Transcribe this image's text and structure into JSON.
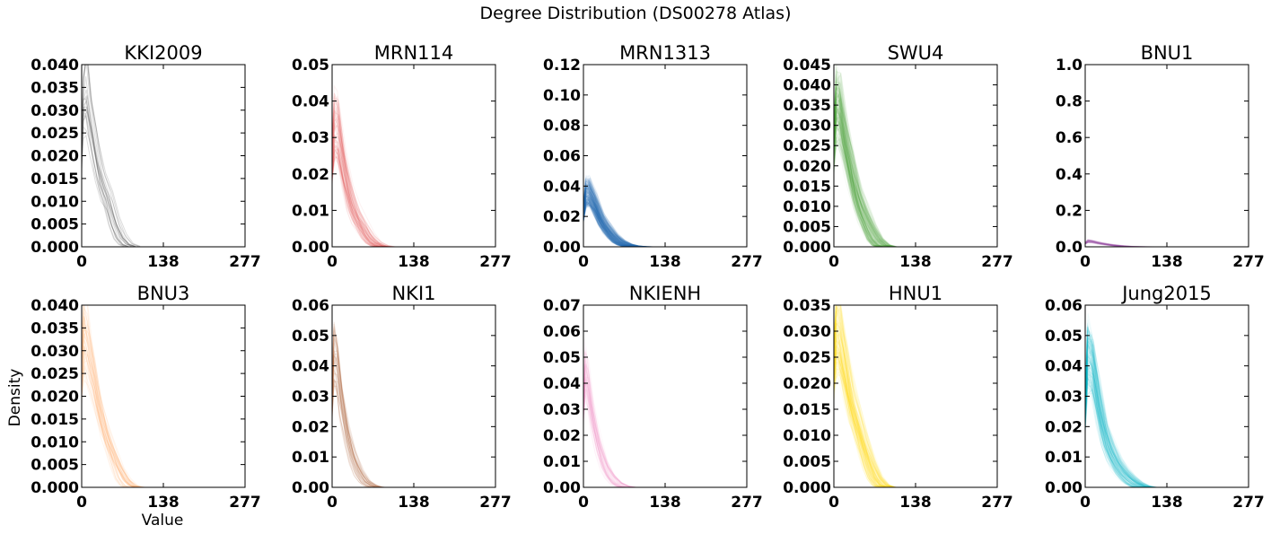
{
  "figure": {
    "title": "Degree Distribution (DS00278 Atlas)",
    "ylabel": "Density",
    "xlabel": "Value"
  },
  "chart_data": [
    {
      "type": "line",
      "title": "KKI2009",
      "color": "#555555",
      "x_ticks": [
        "0",
        "138",
        "277"
      ],
      "xlim": [
        0,
        277
      ],
      "y_ticks": [
        "0.000",
        "0.005",
        "0.010",
        "0.015",
        "0.020",
        "0.025",
        "0.030",
        "0.035",
        "0.040"
      ],
      "ylim": [
        0,
        0.04
      ],
      "curve_count": 20,
      "series": [
        {
          "x": [
            0,
            3,
            8,
            15,
            25,
            35,
            45,
            55,
            65,
            75,
            85
          ],
          "values": [
            0.021,
            0.032,
            0.0345,
            0.028,
            0.02,
            0.014,
            0.0105,
            0.0055,
            0.0022,
            0.0006,
            0.0001
          ]
        }
      ]
    },
    {
      "type": "line",
      "title": "MRN114",
      "color": "#e41a1c",
      "x_ticks": [
        "0",
        "138",
        "277"
      ],
      "xlim": [
        0,
        277
      ],
      "y_ticks": [
        "0.00",
        "0.01",
        "0.02",
        "0.03",
        "0.04",
        "0.05"
      ],
      "ylim": [
        0,
        0.05
      ],
      "curve_count": 80,
      "series": [
        {
          "x": [
            0,
            4,
            10,
            20,
            30,
            40,
            50,
            60,
            70,
            80,
            90
          ],
          "values": [
            0.024,
            0.033,
            0.032,
            0.022,
            0.014,
            0.009,
            0.006,
            0.003,
            0.0012,
            0.0003,
            0.0
          ]
        }
      ]
    },
    {
      "type": "line",
      "title": "MRN1313",
      "color": "#377eb8",
      "x_ticks": [
        "0",
        "138",
        "277"
      ],
      "xlim": [
        0,
        277
      ],
      "y_ticks": [
        "0.00",
        "0.02",
        "0.04",
        "0.06",
        "0.08",
        "0.10",
        "0.12"
      ],
      "ylim": [
        0,
        0.12
      ],
      "curve_count": 300,
      "series": [
        {
          "x": [
            0,
            4,
            10,
            20,
            30,
            40,
            50,
            60,
            70,
            80,
            90,
            100
          ],
          "values": [
            0.022,
            0.035,
            0.036,
            0.028,
            0.018,
            0.012,
            0.007,
            0.0035,
            0.0015,
            0.0005,
            0.0001,
            0.0
          ]
        }
      ]
    },
    {
      "type": "line",
      "title": "SWU4",
      "color": "#4daf4a",
      "x_ticks": [
        "0",
        "138",
        "277"
      ],
      "xlim": [
        0,
        277
      ],
      "y_ticks": [
        "0.000",
        "0.005",
        "0.010",
        "0.015",
        "0.020",
        "0.025",
        "0.030",
        "0.035",
        "0.040",
        "0.045"
      ],
      "ylim": [
        0,
        0.045
      ],
      "curve_count": 200,
      "series": [
        {
          "x": [
            0,
            4,
            10,
            20,
            30,
            40,
            50,
            60,
            70,
            80,
            90
          ],
          "values": [
            0.025,
            0.034,
            0.033,
            0.025,
            0.018,
            0.012,
            0.008,
            0.0045,
            0.0018,
            0.0004,
            0.0
          ]
        }
      ]
    },
    {
      "type": "line",
      "title": "BNU1",
      "color": "#984ea3",
      "x_ticks": [
        "0",
        "138",
        "277"
      ],
      "xlim": [
        0,
        277
      ],
      "y_ticks": [
        "0.0",
        "0.2",
        "0.4",
        "0.6",
        "0.8",
        "1.0"
      ],
      "ylim": [
        0,
        1.0
      ],
      "curve_count": 50,
      "series": [
        {
          "x": [
            0,
            5,
            12,
            25,
            40,
            55,
            70,
            85,
            100
          ],
          "values": [
            0.02,
            0.032,
            0.03,
            0.02,
            0.012,
            0.006,
            0.002,
            0.0005,
            0.0
          ]
        }
      ]
    },
    {
      "type": "line",
      "title": "BNU3",
      "color": "#ff9f50",
      "x_ticks": [
        "0",
        "138",
        "277"
      ],
      "xlim": [
        0,
        277
      ],
      "y_ticks": [
        "0.000",
        "0.005",
        "0.010",
        "0.015",
        "0.020",
        "0.025",
        "0.030",
        "0.035",
        "0.040"
      ],
      "ylim": [
        0,
        0.04
      ],
      "curve_count": 40,
      "series": [
        {
          "x": [
            0,
            4,
            10,
            20,
            30,
            40,
            50,
            60,
            70,
            80,
            90
          ],
          "values": [
            0.026,
            0.033,
            0.031,
            0.024,
            0.017,
            0.012,
            0.008,
            0.0045,
            0.0018,
            0.0004,
            0.0
          ]
        }
      ]
    },
    {
      "type": "line",
      "title": "NKI1",
      "color": "#a65628",
      "x_ticks": [
        "0",
        "138",
        "277"
      ],
      "xlim": [
        0,
        277
      ],
      "y_ticks": [
        "0.00",
        "0.01",
        "0.02",
        "0.03",
        "0.04",
        "0.05",
        "0.06"
      ],
      "ylim": [
        0,
        0.06
      ],
      "curve_count": 30,
      "series": [
        {
          "x": [
            0,
            3,
            8,
            15,
            25,
            35,
            45,
            55,
            65,
            75
          ],
          "values": [
            0.03,
            0.045,
            0.042,
            0.03,
            0.018,
            0.01,
            0.005,
            0.002,
            0.0006,
            0.0
          ]
        }
      ]
    },
    {
      "type": "line",
      "title": "NKIENH",
      "color": "#f781bf",
      "x_ticks": [
        "0",
        "138",
        "277"
      ],
      "xlim": [
        0,
        277
      ],
      "y_ticks": [
        "0.00",
        "0.01",
        "0.02",
        "0.03",
        "0.04",
        "0.05",
        "0.06",
        "0.07"
      ],
      "ylim": [
        0,
        0.07
      ],
      "curve_count": 60,
      "series": [
        {
          "x": [
            0,
            3,
            8,
            15,
            25,
            35,
            45,
            55,
            65,
            75
          ],
          "values": [
            0.032,
            0.045,
            0.04,
            0.028,
            0.017,
            0.009,
            0.0045,
            0.0018,
            0.0005,
            0.0
          ]
        }
      ]
    },
    {
      "type": "line",
      "title": "HNU1",
      "color": "#ffd700",
      "x_ticks": [
        "0",
        "138",
        "277"
      ],
      "xlim": [
        0,
        277
      ],
      "y_ticks": [
        "0.000",
        "0.005",
        "0.010",
        "0.015",
        "0.020",
        "0.025",
        "0.030",
        "0.035"
      ],
      "ylim": [
        0,
        0.035
      ],
      "curve_count": 150,
      "series": [
        {
          "x": [
            0,
            4,
            10,
            20,
            30,
            40,
            50,
            60,
            70,
            80,
            90
          ],
          "values": [
            0.023,
            0.029,
            0.028,
            0.022,
            0.016,
            0.012,
            0.008,
            0.0045,
            0.0018,
            0.0004,
            0.0
          ]
        }
      ]
    },
    {
      "type": "line",
      "title": "Jung2015",
      "color": "#17becf",
      "x_ticks": [
        "0",
        "138",
        "277"
      ],
      "xlim": [
        0,
        277
      ],
      "y_ticks": [
        "0.00",
        "0.01",
        "0.02",
        "0.03",
        "0.04",
        "0.05",
        "0.06"
      ],
      "ylim": [
        0,
        0.06
      ],
      "curve_count": 150,
      "series": [
        {
          "x": [
            0,
            4,
            12,
            22,
            32,
            42,
            52,
            62,
            72,
            82,
            92,
            102
          ],
          "values": [
            0.025,
            0.043,
            0.04,
            0.028,
            0.018,
            0.012,
            0.008,
            0.005,
            0.003,
            0.0014,
            0.0004,
            0.0
          ]
        }
      ]
    }
  ]
}
